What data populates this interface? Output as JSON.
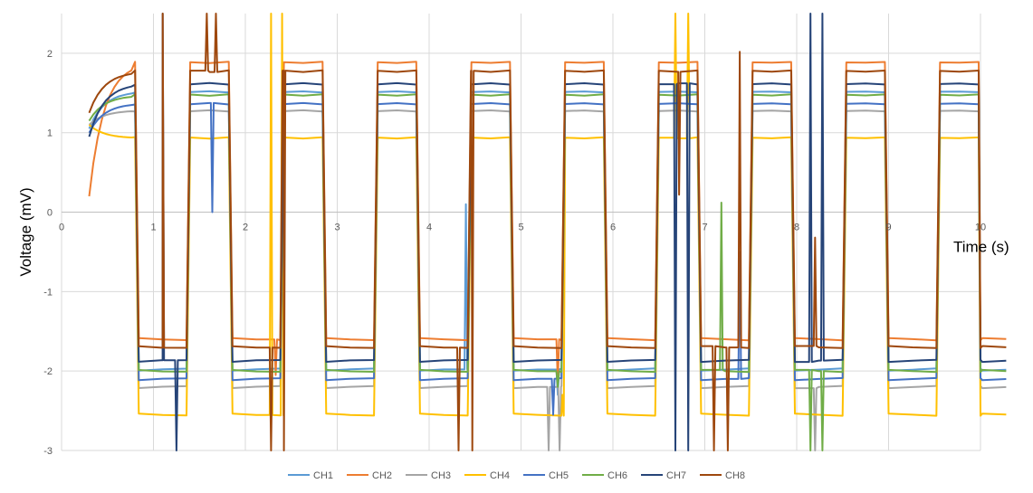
{
  "chart_data": {
    "type": "line",
    "title": "",
    "xlabel": "Time  (s)",
    "ylabel": "Voltage  (mV)",
    "xlim": [
      0,
      10
    ],
    "ylim": [
      -3,
      2.5
    ],
    "x_ticks": [
      "0",
      "1",
      "2",
      "3",
      "4",
      "5",
      "6",
      "7",
      "8",
      "9",
      "10"
    ],
    "y_ticks": [
      "-3",
      "-2",
      "-1",
      "0",
      "1",
      "2"
    ],
    "x_tick_values": [
      0,
      1,
      2,
      3,
      4,
      5,
      6,
      7,
      8,
      9,
      10
    ],
    "y_tick_values": [
      -3,
      -2,
      -1,
      0,
      1,
      2
    ],
    "grid": true,
    "legend_position": "bottom",
    "square_wave": {
      "period_s": 1.02,
      "first_high_start_s": 0.3,
      "first_fall_s": 0.82,
      "first_rise_s": 1.38,
      "end_s": 10.0
    },
    "series": [
      {
        "name": "CH1",
        "color": "#5B9BD5",
        "high": 1.52,
        "low": -1.98,
        "start": 1.05,
        "spikes": [
          [
            4.4,
            0.1
          ],
          [
            5.4,
            -2.3
          ]
        ]
      },
      {
        "name": "CH2",
        "color": "#ED7D31",
        "high": 1.88,
        "low": -1.6,
        "start": 0.2,
        "spikes": [
          [
            2.33,
            -2.05
          ],
          [
            5.4,
            -2.15
          ]
        ]
      },
      {
        "name": "CH3",
        "color": "#A5A5A5",
        "high": 1.28,
        "low": -2.2,
        "start": 1.1,
        "spikes": [
          [
            5.3,
            -3.0
          ],
          [
            5.42,
            -3.0
          ],
          [
            8.2,
            -3.0
          ]
        ]
      },
      {
        "name": "CH4",
        "color": "#FFC000",
        "high": 0.93,
        "low": -2.55,
        "start": 1.1,
        "spikes": [
          [
            2.28,
            2.5
          ],
          [
            2.4,
            2.5
          ],
          [
            6.68,
            2.5
          ],
          [
            6.82,
            2.5
          ],
          [
            5.45,
            -2.3
          ]
        ]
      },
      {
        "name": "CH5",
        "color": "#4472C4",
        "high": 1.37,
        "low": -2.1,
        "start": 1.0,
        "spikes": [
          [
            1.64,
            0.0
          ],
          [
            5.35,
            -2.55
          ],
          [
            7.38,
            -0.5
          ]
        ]
      },
      {
        "name": "CH6",
        "color": "#70AD47",
        "high": 1.47,
        "low": -2.0,
        "start": 1.15,
        "spikes": [
          [
            5.4,
            -2.2
          ],
          [
            7.18,
            0.12
          ],
          [
            8.15,
            -3.0
          ],
          [
            8.28,
            -3.0
          ]
        ]
      },
      {
        "name": "CH7",
        "color": "#264478",
        "high": 1.62,
        "low": -1.87,
        "start": 0.95,
        "spikes": [
          [
            1.1,
            2.5
          ],
          [
            1.25,
            -3.0
          ],
          [
            6.68,
            -3.0
          ],
          [
            6.82,
            -3.0
          ],
          [
            8.15,
            2.5
          ],
          [
            8.28,
            2.5
          ]
        ]
      },
      {
        "name": "CH8",
        "color": "#9E480E",
        "high": 1.77,
        "low": -1.7,
        "start": 1.25,
        "spikes": [
          [
            1.1,
            2.5
          ],
          [
            1.58,
            2.5
          ],
          [
            1.68,
            2.5
          ],
          [
            2.28,
            -3.0
          ],
          [
            2.42,
            -3.0
          ],
          [
            4.32,
            -3.0
          ],
          [
            4.47,
            -3.0
          ],
          [
            6.72,
            0.22
          ],
          [
            7.1,
            -3.0
          ],
          [
            7.25,
            -3.0
          ],
          [
            7.38,
            2.02
          ],
          [
            8.2,
            -0.32
          ]
        ]
      }
    ]
  }
}
